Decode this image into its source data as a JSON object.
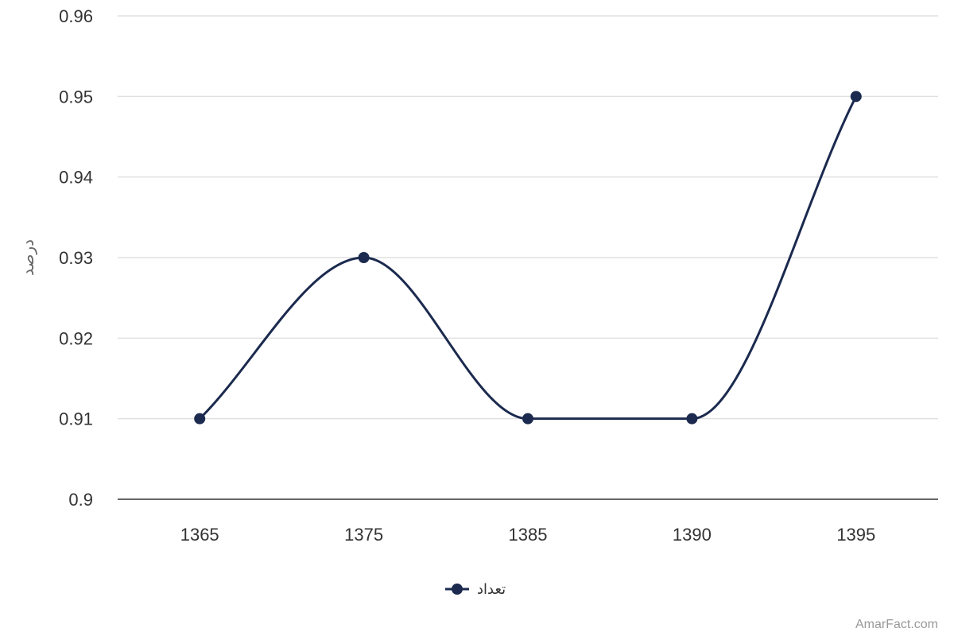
{
  "chart_data": {
    "type": "line",
    "categories": [
      "1365",
      "1375",
      "1385",
      "1390",
      "1395"
    ],
    "series": [
      {
        "name": "تعداد",
        "values": [
          0.91,
          0.93,
          0.91,
          0.91,
          0.95
        ],
        "color": "#1b2a4e"
      }
    ],
    "y_ticks": [
      "0.9",
      "0.91",
      "0.92",
      "0.93",
      "0.94",
      "0.95",
      "0.96"
    ],
    "ylim": [
      0.9,
      0.96
    ],
    "ylabel": "درصد",
    "xlabel": "",
    "grid": true,
    "legend_position": "bottom-center"
  },
  "credit": "AmarFact.com",
  "colors": {
    "grid": "#e0e0e0",
    "axis": "#333333",
    "series": "#1b2a4e"
  }
}
